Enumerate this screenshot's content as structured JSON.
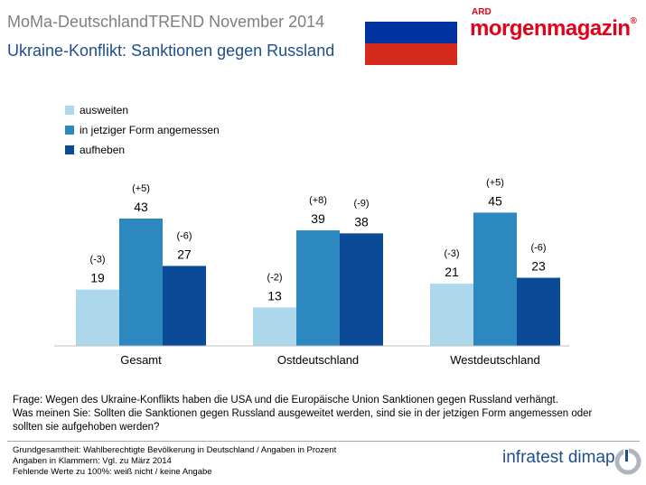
{
  "header": {
    "kicker": "MoMa-DeutschlandTREND November 2014",
    "title": "Ukraine-Konflikt: Sanktionen gegen Russland"
  },
  "brand": {
    "small": "ARD",
    "main": "morgenmagazin",
    "reg": "®"
  },
  "flag": {
    "colors": [
      "#ffffff",
      "#0033a0",
      "#d52b1e"
    ]
  },
  "chart_data": {
    "type": "bar",
    "categories": [
      "Gesamt",
      "Ostdeutschland",
      "Westdeutschland"
    ],
    "series": [
      {
        "name": "ausweiten",
        "values": [
          19,
          13,
          21
        ],
        "changes": [
          "(-3)",
          "(-2)",
          "(-3)"
        ],
        "color": "#add8ec"
      },
      {
        "name": "in jetziger Form angemessen",
        "values": [
          43,
          39,
          45
        ],
        "changes": [
          "(+5)",
          "(+8)",
          "(+5)"
        ],
        "color": "#2e88c0"
      },
      {
        "name": "aufheben",
        "values": [
          27,
          38,
          23
        ],
        "changes": [
          "(-6)",
          "(-9)",
          "(-6)"
        ],
        "color": "#0b4a96"
      }
    ],
    "ylim": [
      0,
      60
    ],
    "grid": false,
    "legend": "top-left"
  },
  "question": {
    "line1": "Frage: Wegen des Ukraine-Konflikts haben die USA und die Europäische Union Sanktionen gegen Russland verhängt.",
    "line2": "Was meinen Sie: Sollten die Sanktionen gegen Russland ausgeweitet werden, sind sie in der jetzigen Form angemessen oder",
    "line3": "sollten sie aufgehoben werden?"
  },
  "footnotes": {
    "line1": "Grundgesamtheit: Wahlberechtigte Bevölkerung in Deutschland / Angaben in Prozent",
    "line2": "Angaben in Klammern: Vgl. zu März 2014",
    "line3": "Fehlende Werte zu 100%: weiß nicht / keine Angabe"
  },
  "footer_brand": "infratest dimap"
}
